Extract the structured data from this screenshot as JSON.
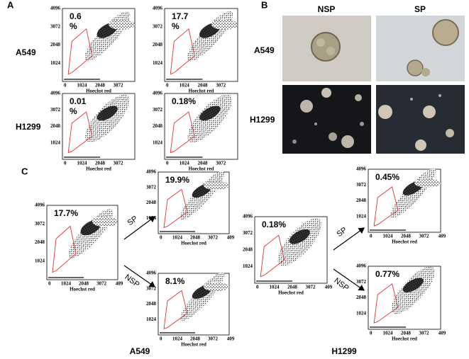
{
  "panel_a": {
    "label": "A",
    "rows": [
      "A549",
      "H1299"
    ],
    "x_ticks": [
      "0",
      "1024",
      "2048",
      "3072"
    ],
    "y_ticks": [
      "1024",
      "2048",
      "3072",
      "4096"
    ],
    "x_label": "Hoechst red",
    "plots": [
      {
        "percent": [
          "0.6",
          "%"
        ]
      },
      {
        "percent": [
          "17.7",
          "%"
        ]
      },
      {
        "percent": [
          "0.01",
          "%"
        ]
      },
      {
        "percent": [
          "0.18%"
        ]
      }
    ]
  },
  "panel_b": {
    "label": "B",
    "columns": [
      "NSP",
      "SP"
    ],
    "rows": [
      "A549",
      "H1299"
    ]
  },
  "panel_c": {
    "label": "C",
    "groups": [
      "A549",
      "H1299"
    ],
    "arrows": [
      "SP",
      "NSP"
    ],
    "x_ticks": [
      "0",
      "1024",
      "2048",
      "3072",
      "409"
    ],
    "y_ticks": [
      "1024",
      "2048",
      "3072",
      "4096"
    ],
    "x_label": "Hoechst red",
    "plots": [
      {
        "percent": [
          "17.7%"
        ]
      },
      {
        "percent": [
          "19.9%"
        ]
      },
      {
        "percent": [
          "8.1%"
        ]
      },
      {
        "percent": [
          "0.18%"
        ]
      },
      {
        "percent": [
          "0.45%"
        ]
      },
      {
        "percent": [
          "0.77%"
        ]
      }
    ]
  }
}
